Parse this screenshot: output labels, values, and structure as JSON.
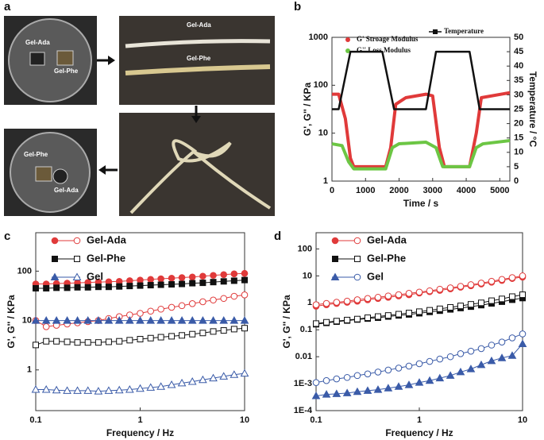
{
  "figure": {
    "panel_labels": [
      "a",
      "b",
      "c",
      "d"
    ],
    "photo_labels": [
      "Gel-Ada",
      "Gel-Phe",
      "Gel-Ada",
      "Gel-Phe",
      "Gel-Phe",
      "Gel-Ada"
    ]
  },
  "chart_data": [
    {
      "type": "line",
      "x_label": "Time / s",
      "y_label": "G', G'' / KPa",
      "y2_label": "Temperature / °C",
      "xlim": [
        0,
        5300
      ],
      "xticks": [
        0,
        1000,
        2000,
        3000,
        4000,
        5000
      ],
      "ylim": [
        1,
        1000
      ],
      "yticks": [
        1,
        10,
        100,
        1000
      ],
      "ylog": true,
      "y2lim": [
        0,
        50
      ],
      "y2ticks": [
        0,
        5,
        10,
        15,
        20,
        25,
        30,
        35,
        40,
        45,
        50
      ],
      "series": [
        {
          "name": "G' Stroage Modulus",
          "color": "#e03a3a",
          "x": [
            0,
            200,
            400,
            550,
            650,
            1600,
            1750,
            1900,
            2200,
            2800,
            3000,
            3200,
            3350,
            4100,
            4300,
            4450,
            5300
          ],
          "values": [
            65,
            65,
            20,
            3,
            2,
            2,
            5,
            40,
            55,
            65,
            60,
            5,
            2,
            2,
            10,
            55,
            70
          ]
        },
        {
          "name": "G'' Loss Modulus",
          "color": "#6cc644",
          "x": [
            0,
            300,
            500,
            650,
            1600,
            1800,
            2000,
            2800,
            3100,
            3300,
            4100,
            4300,
            4500,
            5300
          ],
          "values": [
            6,
            5.5,
            2.5,
            1.8,
            1.8,
            5,
            6,
            6.5,
            5,
            2,
            2,
            5,
            6,
            7
          ]
        },
        {
          "name": "Temperature",
          "color": "#111111",
          "axis": "y2",
          "x": [
            0,
            200,
            550,
            1500,
            1850,
            2800,
            3100,
            4100,
            4400,
            5300
          ],
          "values": [
            25,
            25,
            45,
            45,
            25,
            25,
            45,
            45,
            25,
            25
          ]
        }
      ]
    },
    {
      "type": "scatter-line",
      "x_label": "Frequency / Hz",
      "y_label": "G', G'' / KPa",
      "xlog": true,
      "ylog": true,
      "xlim": [
        0.1,
        10
      ],
      "xticks": [
        0.1,
        1,
        10
      ],
      "ylim": [
        0.15,
        600
      ],
      "yticks": [
        1,
        10,
        100
      ],
      "x": [
        0.1,
        0.126,
        0.158,
        0.2,
        0.251,
        0.316,
        0.398,
        0.5,
        0.631,
        0.794,
        1,
        1.26,
        1.58,
        2,
        2.51,
        3.16,
        3.98,
        5.01,
        6.31,
        7.94,
        10
      ],
      "series": [
        {
          "name": "Gel-Ada",
          "color": "#e03a3a",
          "marker": "circle",
          "loss_marker": "circle",
          "storage": [
            55,
            55,
            56,
            57,
            58,
            59,
            60,
            61,
            62,
            64,
            66,
            68,
            70,
            72,
            74,
            76,
            79,
            82,
            85,
            88,
            90
          ],
          "loss": [
            10,
            7.5,
            8,
            8.5,
            9,
            9.5,
            10,
            11,
            12,
            13,
            14,
            15.5,
            17,
            18.5,
            20,
            22,
            24,
            26,
            28,
            31,
            33
          ]
        },
        {
          "name": "Gel-Phe",
          "color": "#111111",
          "marker": "square",
          "loss_marker": "square",
          "storage": [
            45,
            45,
            46,
            46,
            47,
            47,
            48,
            48,
            49,
            50,
            51,
            52,
            53,
            54,
            55,
            57,
            58,
            60,
            62,
            64,
            66
          ],
          "loss": [
            3.2,
            3.8,
            3.8,
            3.7,
            3.6,
            3.6,
            3.6,
            3.7,
            3.8,
            4,
            4.2,
            4.4,
            4.6,
            4.8,
            5,
            5.3,
            5.6,
            6,
            6.3,
            6.7,
            7
          ]
        },
        {
          "name": "Gel",
          "color": "#3a5ba8",
          "marker": "triangle",
          "loss_marker": "triangle",
          "storage": [
            10,
            10,
            10,
            10,
            10,
            10,
            10,
            10,
            10,
            10,
            10,
            10,
            10,
            10,
            10,
            10,
            10,
            10,
            10,
            10,
            10
          ],
          "loss": [
            0.4,
            0.4,
            0.39,
            0.38,
            0.38,
            0.38,
            0.37,
            0.38,
            0.39,
            0.4,
            0.42,
            0.44,
            0.46,
            0.5,
            0.54,
            0.58,
            0.63,
            0.68,
            0.74,
            0.8,
            0.85
          ]
        }
      ]
    },
    {
      "type": "scatter-line",
      "x_label": "Frequency / Hz",
      "y_label": "G', G'' / KPa",
      "xlog": true,
      "ylog": true,
      "xlim": [
        0.1,
        10
      ],
      "xticks": [
        0.1,
        1,
        10
      ],
      "ylim": [
        0.0001,
        400
      ],
      "yticks": [
        {
          "value": 0.0001,
          "label": "1E-4"
        },
        {
          "value": 0.001,
          "label": "1E-3"
        },
        0.01,
        0.1,
        1,
        10,
        100
      ],
      "x": [
        0.1,
        0.126,
        0.158,
        0.2,
        0.251,
        0.316,
        0.398,
        0.5,
        0.631,
        0.794,
        1,
        1.26,
        1.58,
        2,
        2.51,
        3.16,
        3.98,
        5.01,
        6.31,
        7.94,
        10
      ],
      "series": [
        {
          "name": "Gel-Ada",
          "color": "#e03a3a",
          "marker": "circle",
          "loss_marker": "circle",
          "storage": [
            0.75,
            0.85,
            0.95,
            1.05,
            1.15,
            1.3,
            1.45,
            1.6,
            1.8,
            2,
            2.3,
            2.6,
            2.9,
            3.3,
            3.8,
            4.3,
            5,
            5.8,
            6.8,
            8,
            9
          ],
          "loss": [
            0.85,
            0.95,
            1.05,
            1.15,
            1.3,
            1.45,
            1.6,
            1.8,
            2,
            2.25,
            2.5,
            2.8,
            3.2,
            3.6,
            4.1,
            4.7,
            5.4,
            6.3,
            7.4,
            8.6,
            10
          ]
        },
        {
          "name": "Gel-Phe",
          "color": "#111111",
          "marker": "square",
          "loss_marker": "square",
          "storage": [
            0.16,
            0.18,
            0.2,
            0.22,
            0.24,
            0.26,
            0.28,
            0.31,
            0.34,
            0.37,
            0.41,
            0.46,
            0.51,
            0.57,
            0.64,
            0.72,
            0.82,
            0.95,
            1.1,
            1.3,
            1.5
          ],
          "loss": [
            0.17,
            0.19,
            0.21,
            0.23,
            0.25,
            0.28,
            0.31,
            0.34,
            0.38,
            0.42,
            0.47,
            0.53,
            0.6,
            0.68,
            0.77,
            0.88,
            1,
            1.2,
            1.4,
            1.7,
            2
          ]
        },
        {
          "name": "Gel",
          "color": "#3a5ba8",
          "marker": "triangle",
          "loss_marker": "circle",
          "storage": [
            0.00035,
            0.0004,
            0.00042,
            0.00045,
            0.0005,
            0.00055,
            0.0006,
            0.00068,
            0.00078,
            0.0009,
            0.0011,
            0.0013,
            0.0016,
            0.002,
            0.0027,
            0.0035,
            0.005,
            0.007,
            0.009,
            0.011,
            0.03
          ],
          "loss": [
            0.0011,
            0.0013,
            0.0015,
            0.0017,
            0.002,
            0.0023,
            0.0027,
            0.0032,
            0.0038,
            0.0045,
            0.0055,
            0.0067,
            0.0082,
            0.01,
            0.013,
            0.016,
            0.02,
            0.027,
            0.035,
            0.05,
            0.07
          ]
        }
      ]
    }
  ]
}
